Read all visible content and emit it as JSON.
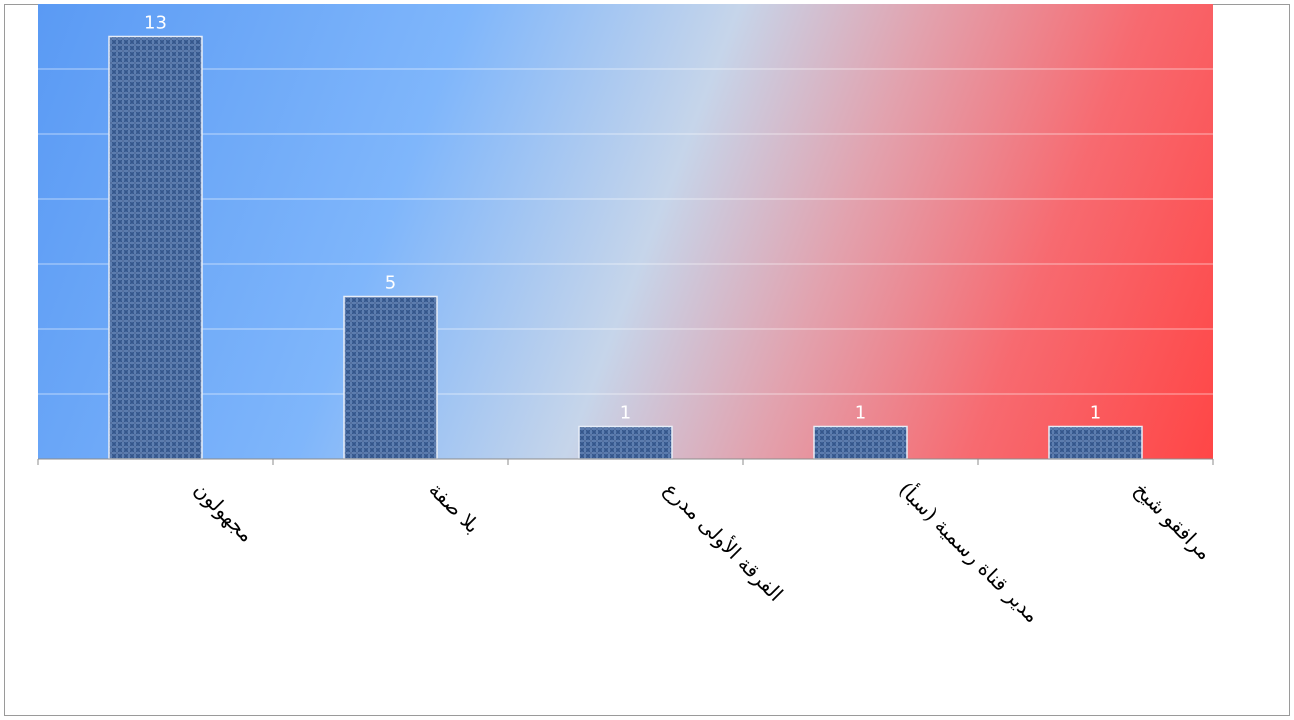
{
  "chart_data": {
    "type": "bar",
    "categories": [
      "مجهولون",
      "بلا صفة",
      "الفرقة الأولى مدرع",
      "مدير قناة رسمية (سبأ)",
      "مرافقو شيخ"
    ],
    "values": [
      13,
      5,
      1,
      1,
      1
    ],
    "title": "",
    "xlabel": "",
    "ylabel": "",
    "ylim": [
      0,
      14
    ],
    "grid": true,
    "legend": "none",
    "colors": {
      "bar_fill": "#3a5f96",
      "bar_pattern": "#7f9fcf",
      "bar_border": "#e8eef8",
      "bg_blue": "#5f9ff6",
      "bg_light": "#c8d6ea",
      "bg_red": "#ff4a4a"
    }
  }
}
